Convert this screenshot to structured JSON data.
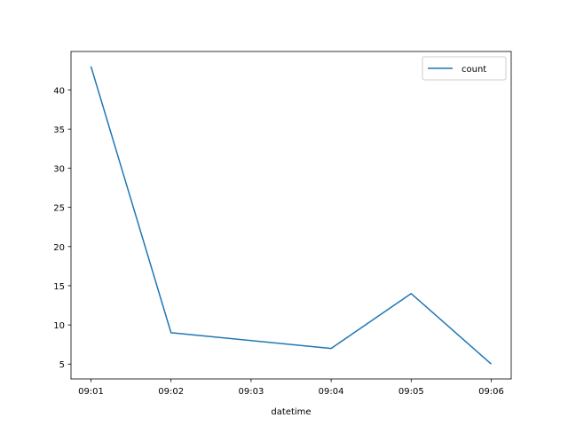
{
  "chart_data": {
    "type": "line",
    "title": "",
    "xlabel": "datetime",
    "ylabel": "",
    "categories": [
      "09:01",
      "09:02",
      "09:03",
      "09:04",
      "09:05",
      "09:06"
    ],
    "x": [
      "09:01",
      "09:02",
      "09:04",
      "09:05",
      "09:06"
    ],
    "y_ticks": [
      5,
      10,
      15,
      20,
      25,
      30,
      35,
      40
    ],
    "ylim": [
      3.1,
      44.9
    ],
    "grid": false,
    "legend": "top-right",
    "series": [
      {
        "name": "count",
        "color": "#1f77b4",
        "x": [
          "09:01",
          "09:02",
          "09:04",
          "09:05",
          "09:06"
        ],
        "values": [
          43,
          9,
          7,
          14,
          5
        ]
      }
    ]
  }
}
